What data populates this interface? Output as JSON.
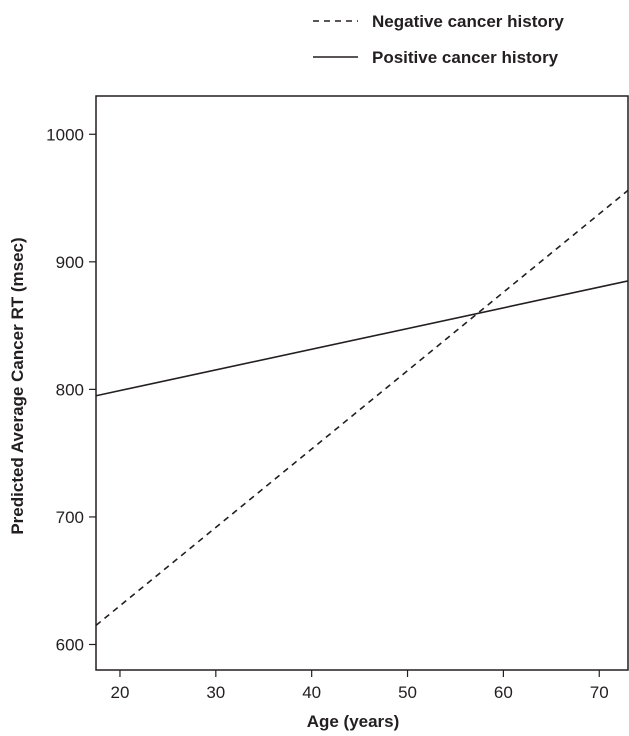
{
  "chart_data": {
    "type": "line",
    "title": "",
    "xlabel": "Age (years)",
    "ylabel": "Predicted Average Cancer RT (msec)",
    "xlim": [
      17.5,
      73
    ],
    "ylim": [
      580,
      1030
    ],
    "xticks": [
      20,
      30,
      40,
      50,
      60,
      70
    ],
    "yticks": [
      600,
      700,
      800,
      900,
      1000
    ],
    "grid": false,
    "legend_position": "top-right",
    "series": [
      {
        "name": "Negative cancer history",
        "line_style": "dashed",
        "x": [
          17.5,
          73
        ],
        "y": [
          615,
          956
        ]
      },
      {
        "name": "Positive cancer history",
        "line_style": "solid",
        "x": [
          17.5,
          73
        ],
        "y": [
          795,
          885
        ]
      }
    ]
  }
}
